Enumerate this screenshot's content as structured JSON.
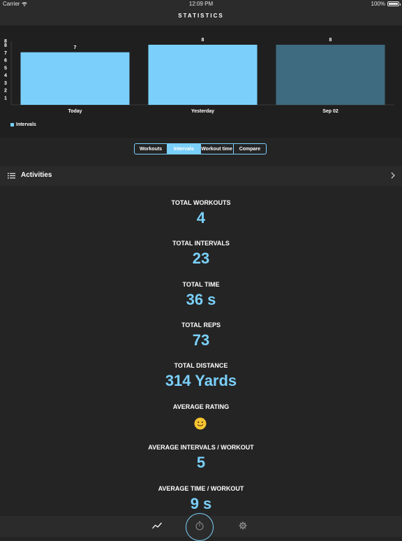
{
  "status_bar": {
    "carrier": "Carrier",
    "time": "12:09 PM",
    "battery": "100%"
  },
  "nav": {
    "title": "STATISTICS"
  },
  "chart_data": {
    "type": "bar",
    "categories": [
      "Today",
      "Yesterday",
      "Sep 02"
    ],
    "values": [
      7,
      8,
      8
    ],
    "data_labels": [
      "7",
      "8",
      "8"
    ],
    "y_ticks": [
      "1",
      "2",
      "3",
      "4",
      "5",
      "6",
      "7",
      "8",
      "8"
    ],
    "ylim": [
      0,
      8
    ],
    "highlighted_index": 2,
    "colors": {
      "bar": "#7ad0fb",
      "bar_highlight": "#3e6b80"
    },
    "series": [
      {
        "name": "Intervals",
        "values": [
          7,
          8,
          8
        ]
      }
    ],
    "legend_position": "bottom-left",
    "grid": false
  },
  "segments": {
    "items": [
      "Workouts",
      "Intervals",
      "Workout time",
      "Compare"
    ],
    "selected": "Intervals"
  },
  "activities": {
    "title": "Activities"
  },
  "stats": [
    {
      "label": "TOTAL WORKOUTS",
      "value": "4"
    },
    {
      "label": "TOTAL INTERVALS",
      "value": "23"
    },
    {
      "label": "TOTAL TIME",
      "value": "36 s"
    },
    {
      "label": "TOTAL REPS",
      "value": "73"
    },
    {
      "label": "TOTAL DISTANCE",
      "value": "314 Yards"
    },
    {
      "label": "AVERAGE RATING",
      "value_icon": "smiley-face-icon"
    },
    {
      "label": "AVERAGE INTERVALS / WORKOUT",
      "value": "5"
    },
    {
      "label": "AVERAGE TIME / WORKOUT",
      "value": "9 s"
    }
  ],
  "tab_bar": {
    "items": [
      "trend-chart-icon",
      "stopwatch-icon",
      "gear-icon"
    ],
    "selected": "stopwatch-icon"
  },
  "colors": {
    "accent": "#7ad0fb",
    "background": "#242424"
  }
}
